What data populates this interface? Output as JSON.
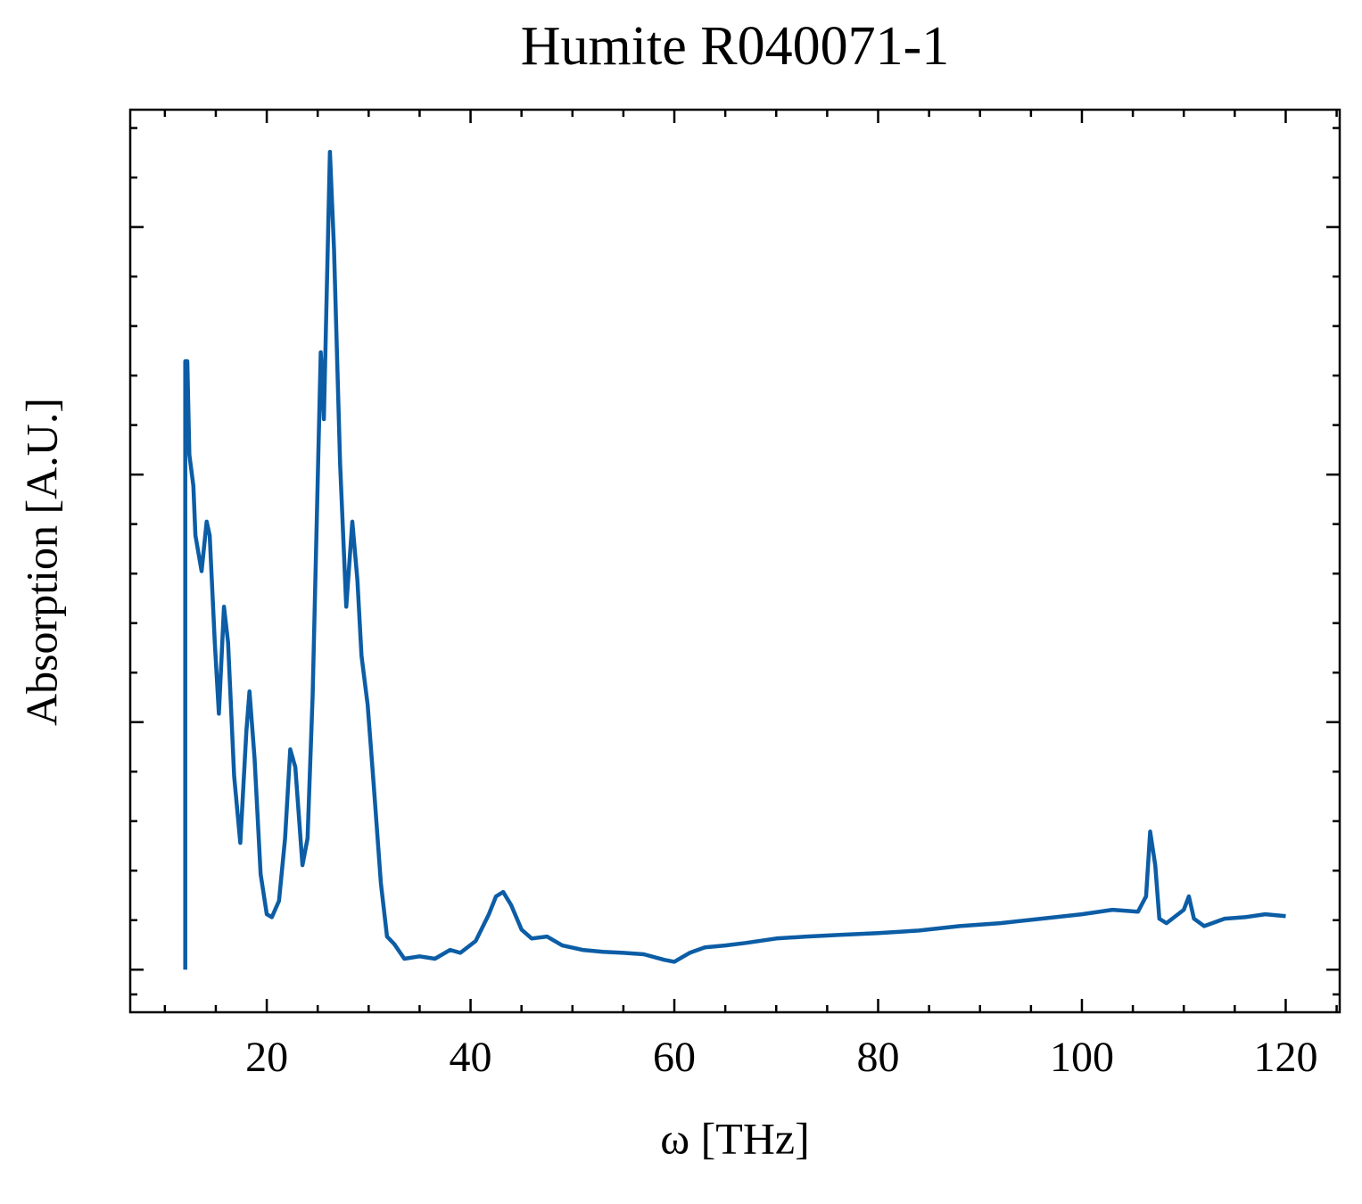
{
  "chart_data": {
    "type": "line",
    "title": "Humite R040071-1",
    "x_label": "ω [THz]",
    "y_label": "Absorption [A.U.]",
    "x": [
      12.0,
      12.0,
      12.2,
      12.4,
      12.8,
      13.0,
      13.6,
      14.1,
      14.4,
      14.9,
      15.3,
      15.8,
      16.2,
      16.8,
      17.4,
      18.0,
      18.3,
      18.8,
      19.4,
      20.0,
      20.5,
      21.2,
      21.8,
      22.3,
      22.8,
      23.5,
      24.0,
      24.5,
      25.3,
      25.6,
      26.2,
      26.6,
      27.2,
      27.8,
      28.4,
      28.9,
      29.3,
      29.9,
      30.5,
      31.2,
      31.8,
      32.5,
      33.5,
      35,
      36.5,
      38,
      39,
      40.5,
      41.8,
      42.5,
      43.2,
      44,
      45,
      46,
      47.5,
      49,
      51,
      53,
      55,
      57,
      59,
      60,
      61.5,
      63,
      65,
      67,
      70,
      73,
      76,
      80,
      84,
      88,
      92,
      96,
      100,
      103,
      105.5,
      106.3,
      106.7,
      107.2,
      107.6,
      108.3,
      110,
      110.5,
      111,
      112,
      114,
      116,
      118,
      120
    ],
    "series": [
      {
        "name": "Humite R040071-1",
        "color": "#0c5da5",
        "values": [
          0,
          1.229,
          1.229,
          1.04,
          0.977,
          0.877,
          0.805,
          0.905,
          0.877,
          0.661,
          0.517,
          0.733,
          0.661,
          0.391,
          0.256,
          0.481,
          0.562,
          0.427,
          0.193,
          0.112,
          0.106,
          0.139,
          0.265,
          0.445,
          0.409,
          0.211,
          0.265,
          0.553,
          1.247,
          1.112,
          1.652,
          1.454,
          1.022,
          0.733,
          0.905,
          0.787,
          0.634,
          0.535,
          0.373,
          0.175,
          0.067,
          0.052,
          0.022,
          0.027,
          0.022,
          0.04,
          0.034,
          0.058,
          0.112,
          0.148,
          0.157,
          0.13,
          0.081,
          0.063,
          0.067,
          0.049,
          0.04,
          0.036,
          0.034,
          0.031,
          0.02,
          0.016,
          0.034,
          0.045,
          0.049,
          0.054,
          0.063,
          0.067,
          0.07,
          0.074,
          0.079,
          0.088,
          0.094,
          0.103,
          0.112,
          0.121,
          0.117,
          0.148,
          0.279,
          0.211,
          0.103,
          0.094,
          0.121,
          0.148,
          0.103,
          0.088,
          0.103,
          0.106,
          0.112,
          0.108
        ]
      }
    ],
    "xlim": [
      6.6,
      125.3
    ],
    "ylim": [
      -0.086,
      1.737
    ],
    "xticks": [
      20,
      40,
      60,
      80,
      100,
      120
    ],
    "yticks": [
      0,
      0.5,
      1,
      1.5
    ],
    "show_ytick_labels": false,
    "xminorticks": [
      10,
      15,
      25,
      30,
      35,
      45,
      50,
      55,
      65,
      70,
      75,
      85,
      90,
      95,
      105,
      110,
      115,
      125
    ],
    "yminorticks": [
      -0.05,
      0.1,
      0.2,
      0.3,
      0.4,
      0.6,
      0.7,
      0.8,
      0.9,
      1.1,
      1.2,
      1.3,
      1.4,
      1.6,
      1.7
    ]
  }
}
